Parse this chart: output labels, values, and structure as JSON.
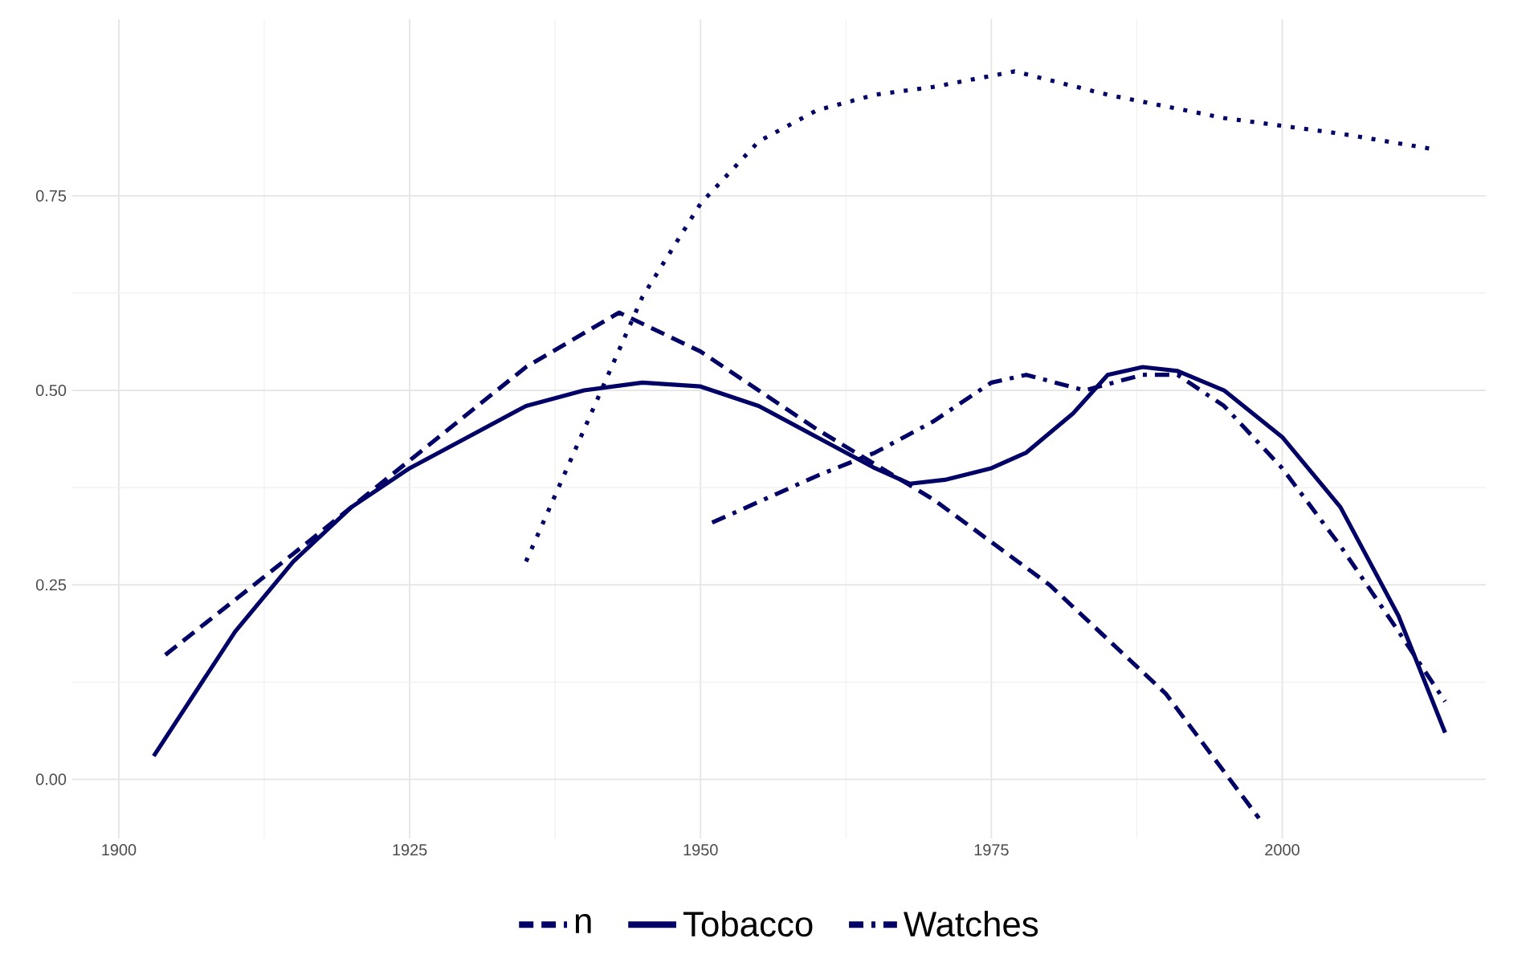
{
  "chart_data": {
    "type": "line",
    "xlim": [
      1896,
      2017.5
    ],
    "ylim": [
      -0.076,
      0.977
    ],
    "xticks": [
      1900,
      1925,
      1950,
      1975,
      2000
    ],
    "yticks": [
      {
        "value": 0,
        "label": "0.00"
      },
      0.25,
      {
        "value": 0.5,
        "label": "0.50"
      },
      0.75
    ],
    "grid": true,
    "legend": "bottom",
    "series": [
      {
        "name": "n",
        "color": "#000066",
        "line_style": "dashed",
        "x": [
          1904,
          1915,
          1925,
          1935,
          1943,
          1950,
          1960,
          1970,
          1980,
          1990,
          1998
        ],
        "values": [
          0.16,
          0.29,
          0.41,
          0.53,
          0.6,
          0.55,
          0.45,
          0.36,
          0.25,
          0.11,
          -0.05
        ]
      },
      {
        "name": "Tobacco",
        "color": "#000066",
        "line_style": "solid",
        "x": [
          1903,
          1910,
          1915,
          1920,
          1925,
          1930,
          1935,
          1940,
          1945,
          1950,
          1955,
          1960,
          1965,
          1968,
          1971,
          1975,
          1978,
          1982,
          1985,
          1988,
          1991,
          1995,
          2000,
          2005,
          2010,
          2014
        ],
        "values": [
          0.03,
          0.19,
          0.28,
          0.35,
          0.4,
          0.44,
          0.48,
          0.5,
          0.51,
          0.505,
          0.48,
          0.44,
          0.4,
          0.38,
          0.385,
          0.4,
          0.42,
          0.47,
          0.52,
          0.53,
          0.525,
          0.5,
          0.44,
          0.35,
          0.21,
          0.06
        ]
      },
      {
        "name": "Watches",
        "color": "#000066",
        "line_style": "dashdot",
        "x": [
          1951,
          1960,
          1965,
          1970,
          1975,
          1978,
          1983,
          1988,
          1991,
          1995,
          2000,
          2005,
          2010,
          2014
        ],
        "values": [
          0.33,
          0.39,
          0.42,
          0.46,
          0.51,
          0.52,
          0.5,
          0.52,
          0.52,
          0.48,
          0.4,
          0.3,
          0.19,
          0.1
        ]
      },
      {
        "color": "#000066",
        "line_style": "dotted",
        "x": [
          1935,
          1940,
          1945,
          1950,
          1955,
          1960,
          1965,
          1970,
          1977,
          1985,
          1995,
          2005,
          2013
        ],
        "values": [
          0.28,
          0.45,
          0.62,
          0.74,
          0.82,
          0.86,
          0.88,
          0.89,
          0.91,
          0.88,
          0.85,
          0.83,
          0.81
        ]
      }
    ]
  }
}
